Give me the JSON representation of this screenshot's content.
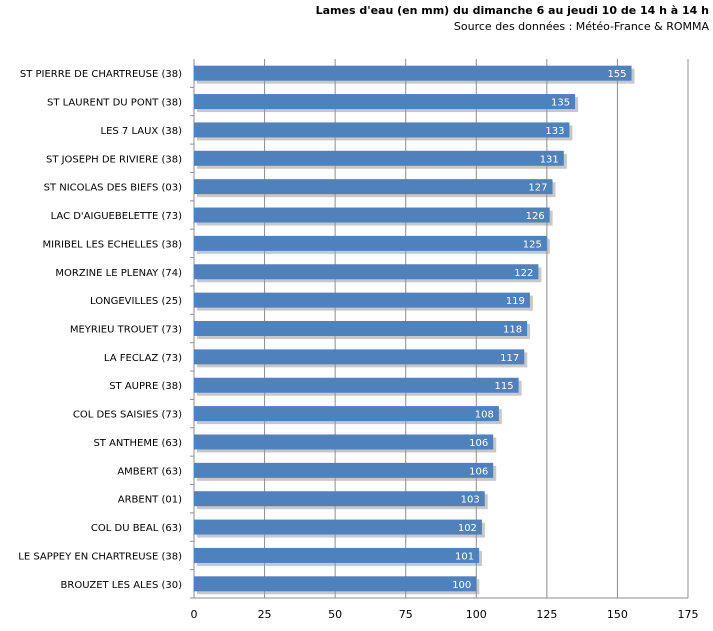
{
  "chart_data": {
    "type": "bar",
    "orientation": "horizontal",
    "title": "Lames d'eau (en mm) du dimanche  6 au jeudi 10  de 14 h à 14 h",
    "subtitle": "Source des données : Météo-France & ROMMA",
    "categories": [
      "ST PIERRE DE CHARTREUSE (38)",
      "ST LAURENT DU PONT (38)",
      "LES 7 LAUX (38)",
      "ST JOSEPH DE RIVIERE (38)",
      "ST NICOLAS DES BIEFS (03)",
      "LAC D'AIGUEBELETTE (73)",
      "MIRIBEL LES ECHELLES (38)",
      "MORZINE LE PLENAY (74)",
      "LONGEVILLES (25)",
      "MEYRIEU TROUET (73)",
      "LA FECLAZ (73)",
      "ST AUPRE (38)",
      "COL DES SAISIES (73)",
      "ST ANTHEME (63)",
      "AMBERT (63)",
      "ARBENT (01)",
      "COL DU BEAL (63)",
      "LE SAPPEY EN CHARTREUSE (38)",
      "BROUZET LES ALES (30)"
    ],
    "values": [
      155,
      135,
      133,
      131,
      127,
      126,
      125,
      122,
      119,
      118,
      117,
      115,
      108,
      106,
      106,
      103,
      102,
      101,
      100
    ],
    "xlim": [
      0,
      175
    ],
    "xticks": [
      0,
      25,
      50,
      75,
      100,
      125,
      150,
      175
    ],
    "grid": "vertical",
    "bar_color": "#4F81BD",
    "data_labels": true
  }
}
